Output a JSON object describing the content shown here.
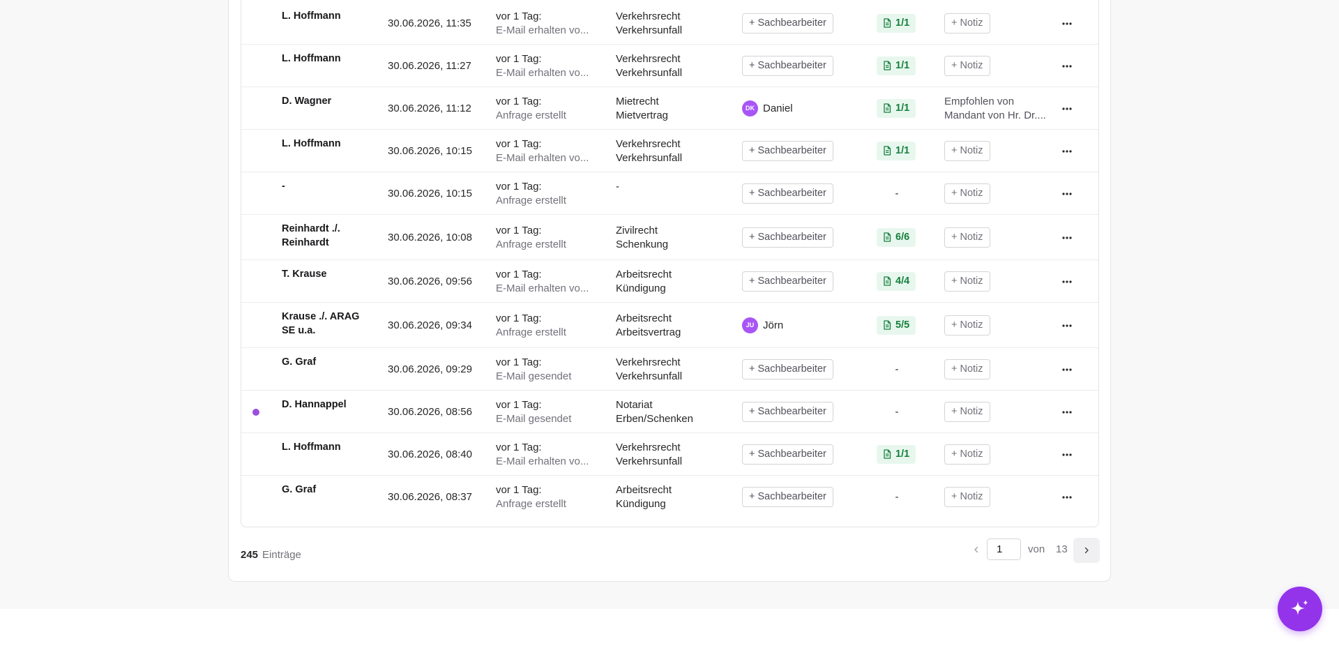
{
  "rows": [
    {
      "name": "L. Hoffmann",
      "date": "30.06.2026, 11:35",
      "when": "vor 1 Tag:",
      "event": "E-Mail erhalten vo...",
      "area": "Verkehrsrecht",
      "sub": "Verkehrsunfall",
      "assign": "+ Sachbearbeiter",
      "docs": "1/1",
      "note": "+ Notiz"
    },
    {
      "name": "L. Hoffmann",
      "date": "30.06.2026, 11:27",
      "when": "vor 1 Tag:",
      "event": "E-Mail erhalten vo...",
      "area": "Verkehrsrecht",
      "sub": "Verkehrsunfall",
      "assign": "+ Sachbearbeiter",
      "docs": "1/1",
      "note": "+ Notiz"
    },
    {
      "name": "D. Wagner",
      "date": "30.06.2026, 11:12",
      "when": "vor 1 Tag:",
      "event": "Anfrage erstellt",
      "area": "Mietrecht",
      "sub": "Mietvertrag",
      "assignee_initials": "DK",
      "assignee_name": "Daniel",
      "docs": "1/1",
      "note_text": "Empfohlen von Mandant von Hr. Dr...."
    },
    {
      "name": "L. Hoffmann",
      "date": "30.06.2026, 10:15",
      "when": "vor 1 Tag:",
      "event": "E-Mail erhalten vo...",
      "area": "Verkehrsrecht",
      "sub": "Verkehrsunfall",
      "assign": "+ Sachbearbeiter",
      "docs": "1/1",
      "note": "+ Notiz"
    },
    {
      "name": "-",
      "date": "30.06.2026, 10:15",
      "when": "vor 1 Tag:",
      "event": "Anfrage erstellt",
      "area": "-",
      "sub": "",
      "assign": "+ Sachbearbeiter",
      "docs_dash": "-",
      "note": "+ Notiz"
    },
    {
      "name": "Reinhardt ./. Reinhardt",
      "date": "30.06.2026, 10:08",
      "when": "vor 1 Tag:",
      "event": "Anfrage erstellt",
      "area": "Zivilrecht",
      "sub": "Schenkung",
      "assign": "+ Sachbearbeiter",
      "docs": "6/6",
      "note": "+ Notiz"
    },
    {
      "name": "T. Krause",
      "date": "30.06.2026, 09:56",
      "when": "vor 1 Tag:",
      "event": "E-Mail erhalten vo...",
      "area": "Arbeitsrecht",
      "sub": "Kündigung",
      "assign": "+ Sachbearbeiter",
      "docs": "4/4",
      "note": "+ Notiz"
    },
    {
      "name": "Krause ./. ARAG SE u.a.",
      "date": "30.06.2026, 09:34",
      "when": "vor 1 Tag:",
      "event": "Anfrage erstellt",
      "area": "Arbeitsrecht",
      "sub": "Arbeitsvertrag",
      "assignee_initials": "JU",
      "assignee_name": "Jörn",
      "docs": "5/5",
      "note": "+ Notiz"
    },
    {
      "name": "G. Graf",
      "date": "30.06.2026, 09:29",
      "when": "vor 1 Tag:",
      "event": "E-Mail gesendet",
      "area": "Verkehrsrecht",
      "sub": "Verkehrsunfall",
      "assign": "+ Sachbearbeiter",
      "docs_dash": "-",
      "note": "+ Notiz"
    },
    {
      "name": "D. Hannappel",
      "date": "30.06.2026, 08:56",
      "when": "vor 1 Tag:",
      "event": "E-Mail gesendet",
      "area": "Notariat",
      "sub": "Erben/Schenken",
      "assign": "+ Sachbearbeiter",
      "docs_dash": "-",
      "note": "+ Notiz",
      "unread": true
    },
    {
      "name": "L. Hoffmann",
      "date": "30.06.2026, 08:40",
      "when": "vor 1 Tag:",
      "event": "E-Mail erhalten vo...",
      "area": "Verkehrsrecht",
      "sub": "Verkehrsunfall",
      "assign": "+ Sachbearbeiter",
      "docs": "1/1",
      "note": "+ Notiz"
    },
    {
      "name": "G. Graf",
      "date": "30.06.2026, 08:37",
      "when": "vor 1 Tag:",
      "event": "Anfrage erstellt",
      "area": "Arbeitsrecht",
      "sub": "Kündigung",
      "assign": "+ Sachbearbeiter",
      "docs_dash": "-",
      "note": "+ Notiz"
    }
  ],
  "footer": {
    "count": "245",
    "count_label": "Einträge",
    "page": "1",
    "of_label": "von",
    "total_pages": "13"
  },
  "colors": {
    "accent": "#9333ea",
    "doc_badge_bg": "#e8f7ee",
    "doc_badge_text": "#15803d"
  }
}
